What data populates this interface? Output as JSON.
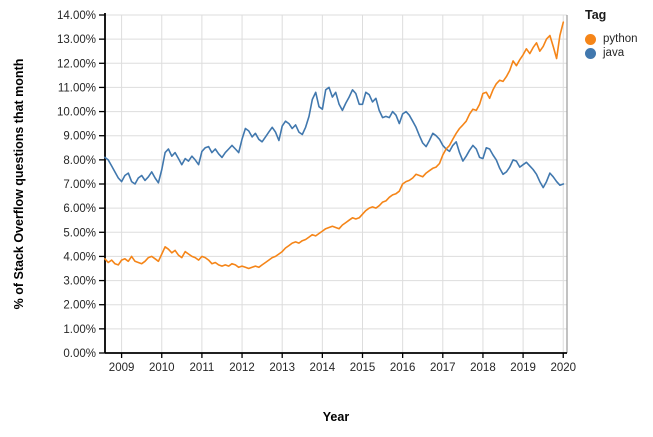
{
  "chart_data": {
    "type": "line",
    "title": "",
    "xlabel": "Year",
    "ylabel": "% of Stack Overflow questions that month",
    "legend": {
      "title": "Tag",
      "position": "right"
    },
    "x_axis": {
      "tick_years": [
        2009,
        2010,
        2011,
        2012,
        2013,
        2014,
        2015,
        2016,
        2017,
        2018,
        2019,
        2020
      ],
      "start_month": "2008-08",
      "end_month": "2020-01",
      "points_per_year": 12
    },
    "y_axis": {
      "min": 0,
      "max": 14,
      "tick_step": 1,
      "tick_labels": [
        "0.00%",
        "1.00%",
        "2.00%",
        "3.00%",
        "4.00%",
        "5.00%",
        "6.00%",
        "7.00%",
        "8.00%",
        "9.00%",
        "10.00%",
        "11.00%",
        "12.00%",
        "13.00%",
        "14.00%"
      ],
      "grid": true
    },
    "series": [
      {
        "name": "python",
        "color": "#f58518",
        "values": [
          3.9,
          3.75,
          3.85,
          3.7,
          3.65,
          3.85,
          3.9,
          3.8,
          4.0,
          3.8,
          3.75,
          3.7,
          3.8,
          3.95,
          4.0,
          3.9,
          3.8,
          4.1,
          4.4,
          4.3,
          4.15,
          4.25,
          4.05,
          3.95,
          4.2,
          4.1,
          4.0,
          3.95,
          3.85,
          4.0,
          3.95,
          3.85,
          3.7,
          3.75,
          3.65,
          3.6,
          3.65,
          3.6,
          3.7,
          3.65,
          3.55,
          3.6,
          3.55,
          3.5,
          3.55,
          3.6,
          3.55,
          3.65,
          3.75,
          3.85,
          3.95,
          4.0,
          4.1,
          4.2,
          4.35,
          4.45,
          4.55,
          4.6,
          4.55,
          4.65,
          4.7,
          4.8,
          4.9,
          4.85,
          4.95,
          5.05,
          5.15,
          5.2,
          5.25,
          5.2,
          5.15,
          5.3,
          5.4,
          5.5,
          5.6,
          5.55,
          5.6,
          5.75,
          5.9,
          6.0,
          6.05,
          6.0,
          6.1,
          6.25,
          6.3,
          6.45,
          6.55,
          6.6,
          6.7,
          7.0,
          7.1,
          7.15,
          7.25,
          7.4,
          7.35,
          7.3,
          7.45,
          7.55,
          7.65,
          7.7,
          7.85,
          8.2,
          8.45,
          8.6,
          8.85,
          9.1,
          9.3,
          9.45,
          9.6,
          9.9,
          10.1,
          10.05,
          10.3,
          10.75,
          10.8,
          10.55,
          10.9,
          11.15,
          11.3,
          11.25,
          11.45,
          11.7,
          12.1,
          11.9,
          12.15,
          12.35,
          12.6,
          12.4,
          12.65,
          12.85,
          12.5,
          12.7,
          13.0,
          13.15,
          12.7,
          12.2,
          13.15,
          13.7
        ]
      },
      {
        "name": "java",
        "color": "#4178ae",
        "values": [
          8.1,
          8.0,
          7.75,
          7.5,
          7.25,
          7.1,
          7.35,
          7.45,
          7.1,
          7.0,
          7.25,
          7.35,
          7.15,
          7.3,
          7.5,
          7.25,
          7.05,
          7.6,
          8.3,
          8.45,
          8.15,
          8.3,
          8.05,
          7.8,
          8.05,
          7.95,
          8.15,
          8.0,
          7.8,
          8.35,
          8.5,
          8.55,
          8.3,
          8.45,
          8.25,
          8.1,
          8.3,
          8.45,
          8.6,
          8.45,
          8.3,
          8.85,
          9.3,
          9.2,
          8.95,
          9.1,
          8.85,
          8.75,
          8.95,
          9.15,
          9.35,
          9.15,
          8.8,
          9.4,
          9.6,
          9.5,
          9.3,
          9.45,
          9.15,
          9.05,
          9.35,
          9.8,
          10.5,
          10.8,
          10.2,
          10.1,
          10.9,
          11.0,
          10.6,
          10.8,
          10.3,
          10.05,
          10.35,
          10.6,
          10.9,
          10.75,
          10.3,
          10.3,
          10.8,
          10.7,
          10.4,
          10.55,
          10.05,
          9.75,
          9.8,
          9.75,
          10.0,
          9.85,
          9.5,
          9.9,
          10.0,
          9.85,
          9.6,
          9.35,
          9.0,
          8.7,
          8.55,
          8.8,
          9.1,
          9.0,
          8.85,
          8.6,
          8.45,
          8.35,
          8.6,
          8.75,
          8.3,
          7.95,
          8.15,
          8.4,
          8.6,
          8.45,
          8.1,
          8.05,
          8.5,
          8.45,
          8.2,
          8.0,
          7.65,
          7.4,
          7.5,
          7.7,
          8.0,
          7.95,
          7.7,
          7.8,
          7.9,
          7.75,
          7.6,
          7.4,
          7.1,
          6.85,
          7.1,
          7.45,
          7.3,
          7.1,
          6.95,
          7.0
        ]
      }
    ],
    "style_colors": {
      "grid": "#dddddd",
      "spine": "#000000",
      "right_border": "#999999",
      "tick_label": "#262626",
      "axis_title": "#000000"
    }
  }
}
